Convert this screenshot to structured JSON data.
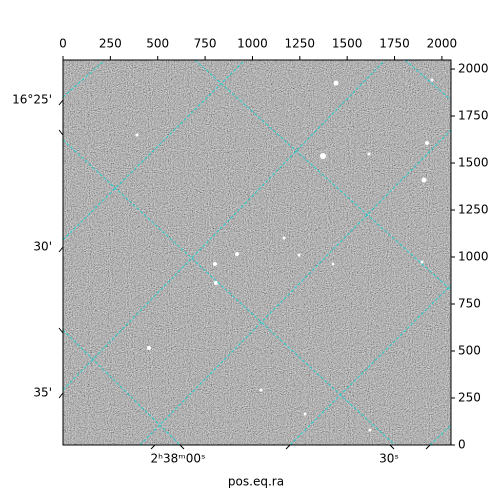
{
  "chart_data": {
    "type": "image",
    "xlabel": "pos.eq.ra",
    "xlim": [
      0,
      2048
    ],
    "ylim": [
      0,
      2048
    ],
    "xticks": [
      0,
      250,
      500,
      750,
      1000,
      1250,
      1500,
      1750,
      2000
    ],
    "yticks": [
      0,
      250,
      500,
      750,
      1000,
      1250,
      1500,
      1750,
      2000
    ],
    "dec_tick_labels": [
      "16°25'",
      "30'",
      "35'"
    ],
    "ra_tick_labels": [
      "2ʰ38ᵐ00ˢ",
      "30ˢ"
    ],
    "grid": true,
    "grid_color": "#20d0d0"
  }
}
